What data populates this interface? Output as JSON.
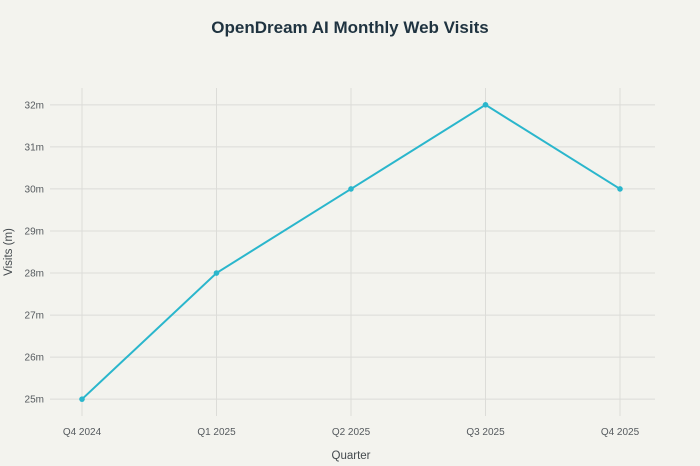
{
  "chart_data": {
    "type": "line",
    "title": "OpenDream AI Monthly Web Visits",
    "xlabel": "Quarter",
    "ylabel": "Visits (m)",
    "categories": [
      "Q4 2024",
      "Q1 2025",
      "Q2 2025",
      "Q3 2025",
      "Q4 2025"
    ],
    "series": [
      {
        "values": [
          25,
          28,
          30,
          32,
          30
        ]
      }
    ],
    "yticks": [
      25,
      26,
      27,
      28,
      29,
      30,
      31,
      32
    ],
    "ytick_labels": [
      "25m",
      "26m",
      "27m",
      "28m",
      "29m",
      "30m",
      "31m",
      "32m"
    ],
    "ylim": [
      24.6,
      32.4
    ],
    "grid": true,
    "colors": {
      "line": "#2ab6cc",
      "grid": "#dcdcd8",
      "background": "#f3f3ee"
    }
  }
}
